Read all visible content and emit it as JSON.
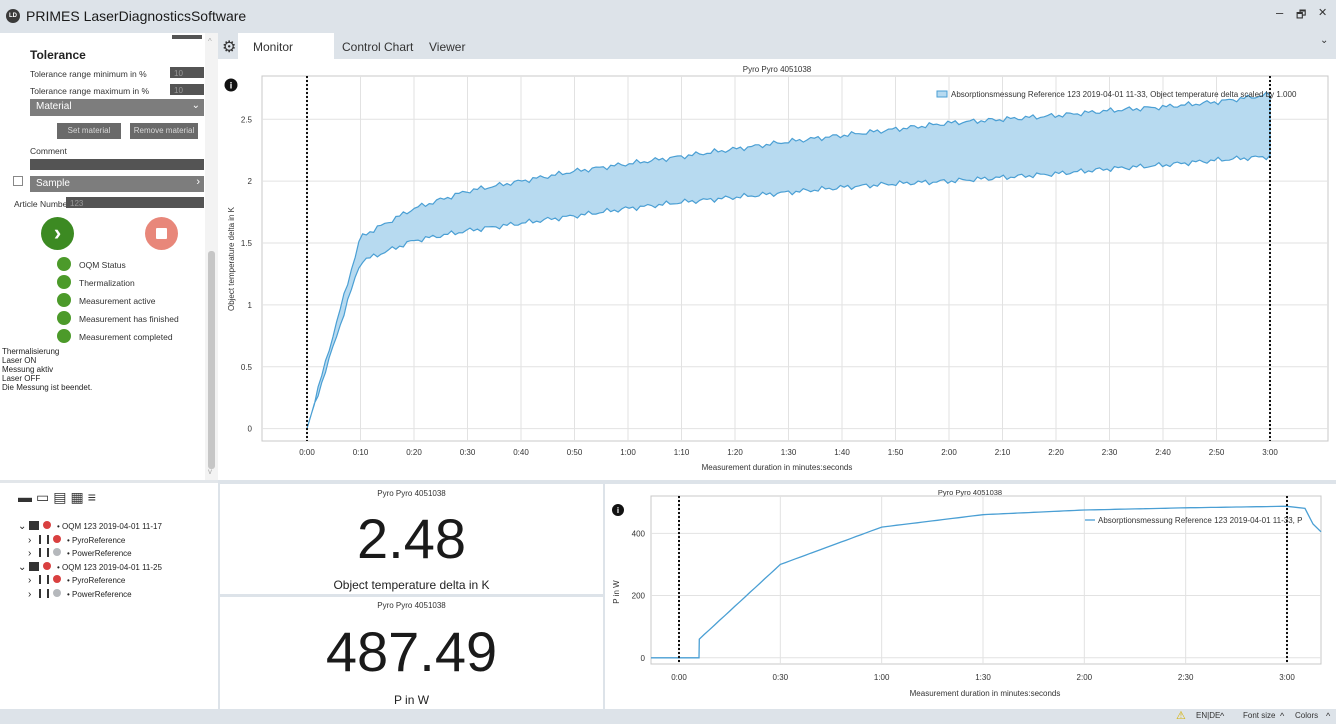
{
  "window": {
    "title": "PRIMES LaserDiagnosticsSoftware",
    "logo": "LD",
    "minimize": "–",
    "restore": "🗗",
    "close": "✕"
  },
  "left_panel": {
    "section_title": "Tolerance",
    "tol_min_label": "Tolerance range minimum in %",
    "tol_min_value": "10",
    "tol_max_label": "Tolerance range maximum in %",
    "tol_max_value": "10",
    "material_label": "Material",
    "set_material": "Set material",
    "remove_material": "Remove material",
    "comment_label": "Comment",
    "sample_label": "Sample",
    "article_label": "Article Number",
    "article_value": "123",
    "status_items": [
      "OQM Status",
      "Thermalization",
      "Measurement active",
      "Measurement has finished",
      "Measurement completed"
    ],
    "log_lines": [
      "Thermalisierung",
      "Laser ON",
      "Messung aktiv",
      "Laser OFF",
      "Die Messung ist beendet."
    ]
  },
  "tabs": [
    "Monitor",
    "Control Chart",
    "Viewer"
  ],
  "main_chart": {
    "title": "Pyro Pyro 4051038",
    "legend": "Absorptionsmessung Reference 123 2019-04-01 11-33, Object temperature delta scaled by 1.000",
    "ylabel": "Object temperature delta in K",
    "xlabel": "Measurement duration in minutes:seconds",
    "yticks": [
      "0",
      "0.5",
      "1",
      "1.5",
      "2",
      "2.5"
    ],
    "xticks": [
      "0:00",
      "0:10",
      "0:20",
      "0:30",
      "0:40",
      "0:50",
      "1:00",
      "1:10",
      "1:20",
      "1:30",
      "1:40",
      "1:50",
      "2:00",
      "2:10",
      "2:20",
      "2:30",
      "2:40",
      "2:50",
      "3:00"
    ]
  },
  "tree": [
    {
      "label": "OQM 123 2019-04-01 11-17",
      "level": 0,
      "dot": "#d94040"
    },
    {
      "label": "PyroReference",
      "level": 1,
      "dot": "#d94040"
    },
    {
      "label": "PowerReference",
      "level": 1,
      "dot": "#b5b8bc"
    },
    {
      "label": "OQM 123 2019-04-01 11-25",
      "level": 0,
      "dot": "#d94040"
    },
    {
      "label": "PyroReference",
      "level": 1,
      "dot": "#d94040"
    },
    {
      "label": "PowerReference",
      "level": 1,
      "dot": "#b5b8bc"
    }
  ],
  "value_panels": [
    {
      "title": "Pyro Pyro 4051038",
      "value": "2.48",
      "unit": "Object temperature delta in K"
    },
    {
      "title": "Pyro Pyro 4051038",
      "value": "487.49",
      "unit": "P in W"
    }
  ],
  "small_chart": {
    "title": "Pyro Pyro 4051038",
    "legend": "Absorptionsmessung Reference 123 2019-04-01 11-33, P",
    "ylabel": "P in W",
    "xlabel": "Measurement duration in minutes:seconds",
    "yticks": [
      "0",
      "200",
      "400"
    ],
    "xticks": [
      "0:00",
      "0:30",
      "1:00",
      "1:30",
      "2:00",
      "2:30",
      "3:00"
    ]
  },
  "status_bar": {
    "lang": "EN|DE",
    "font_size": "Font size",
    "colors": "Colors"
  },
  "colors": {
    "accent": "#4a9fd4",
    "band_fill": "#b7daf0",
    "green": "#4c9a2a",
    "red": "#e8877a",
    "start_green": "#3c8a22"
  },
  "chart_data": [
    {
      "type": "area",
      "title": "Pyro Pyro 4051038",
      "xlabel": "Measurement duration in minutes:seconds",
      "ylabel": "Object temperature delta in K",
      "x": [
        "0:00",
        "0:10",
        "0:20",
        "0:30",
        "0:40",
        "0:50",
        "1:00",
        "1:10",
        "1:20",
        "1:30",
        "1:40",
        "1:50",
        "2:00",
        "2:10",
        "2:20",
        "2:30",
        "2:40",
        "2:50",
        "3:00"
      ],
      "series": [
        {
          "name": "upper",
          "values": [
            0.0,
            1.55,
            1.78,
            1.92,
            2.0,
            2.08,
            2.14,
            2.2,
            2.26,
            2.32,
            2.37,
            2.42,
            2.47,
            2.5,
            2.53,
            2.57,
            2.6,
            2.64,
            2.7
          ]
        },
        {
          "name": "lower",
          "values": [
            0.0,
            1.35,
            1.52,
            1.6,
            1.66,
            1.72,
            1.78,
            1.83,
            1.87,
            1.91,
            1.95,
            1.98,
            2.0,
            2.03,
            2.06,
            2.1,
            2.13,
            2.17,
            2.2
          ]
        }
      ],
      "ylim": [
        -0.1,
        2.85
      ],
      "grid": true
    },
    {
      "type": "line",
      "title": "Pyro Pyro 4051038",
      "xlabel": "Measurement duration in minutes:seconds",
      "ylabel": "P in W",
      "x": [
        "0:00",
        "0:30",
        "1:00",
        "1:30",
        "2:00",
        "2:30",
        "3:00"
      ],
      "series": [
        {
          "name": "Absorptionsmessung Reference 123 2019-04-01 11-33, P",
          "values": [
            0,
            300,
            420,
            460,
            475,
            482,
            487
          ]
        }
      ],
      "ylim": [
        -20,
        520
      ],
      "grid": true
    }
  ]
}
